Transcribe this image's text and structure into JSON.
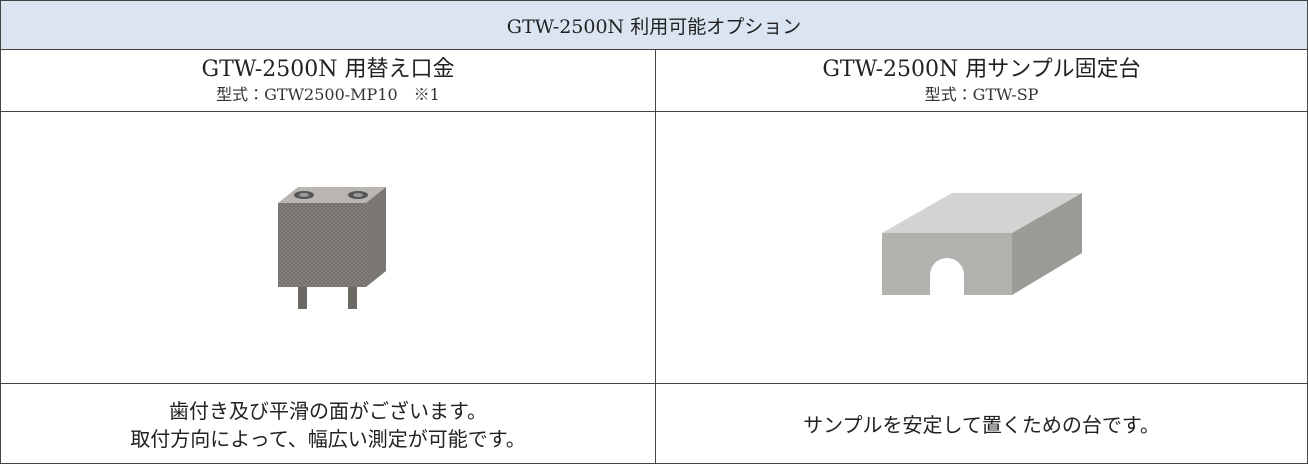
{
  "table": {
    "title": "GTW-2500N 利用可能オプション",
    "columns": [
      {
        "name": "GTW-2500N 用替え口金",
        "model": "型式：GTW2500-MP10　※1",
        "description": [
          "歯付き及び平滑の面がございます。",
          "取付方向によって、幅広い測定が可能です。"
        ]
      },
      {
        "name": "GTW-2500N 用サンプル固定台",
        "model": "型式：GTW-SP",
        "description": [
          "サンプルを安定して置くための台です。"
        ]
      }
    ]
  }
}
